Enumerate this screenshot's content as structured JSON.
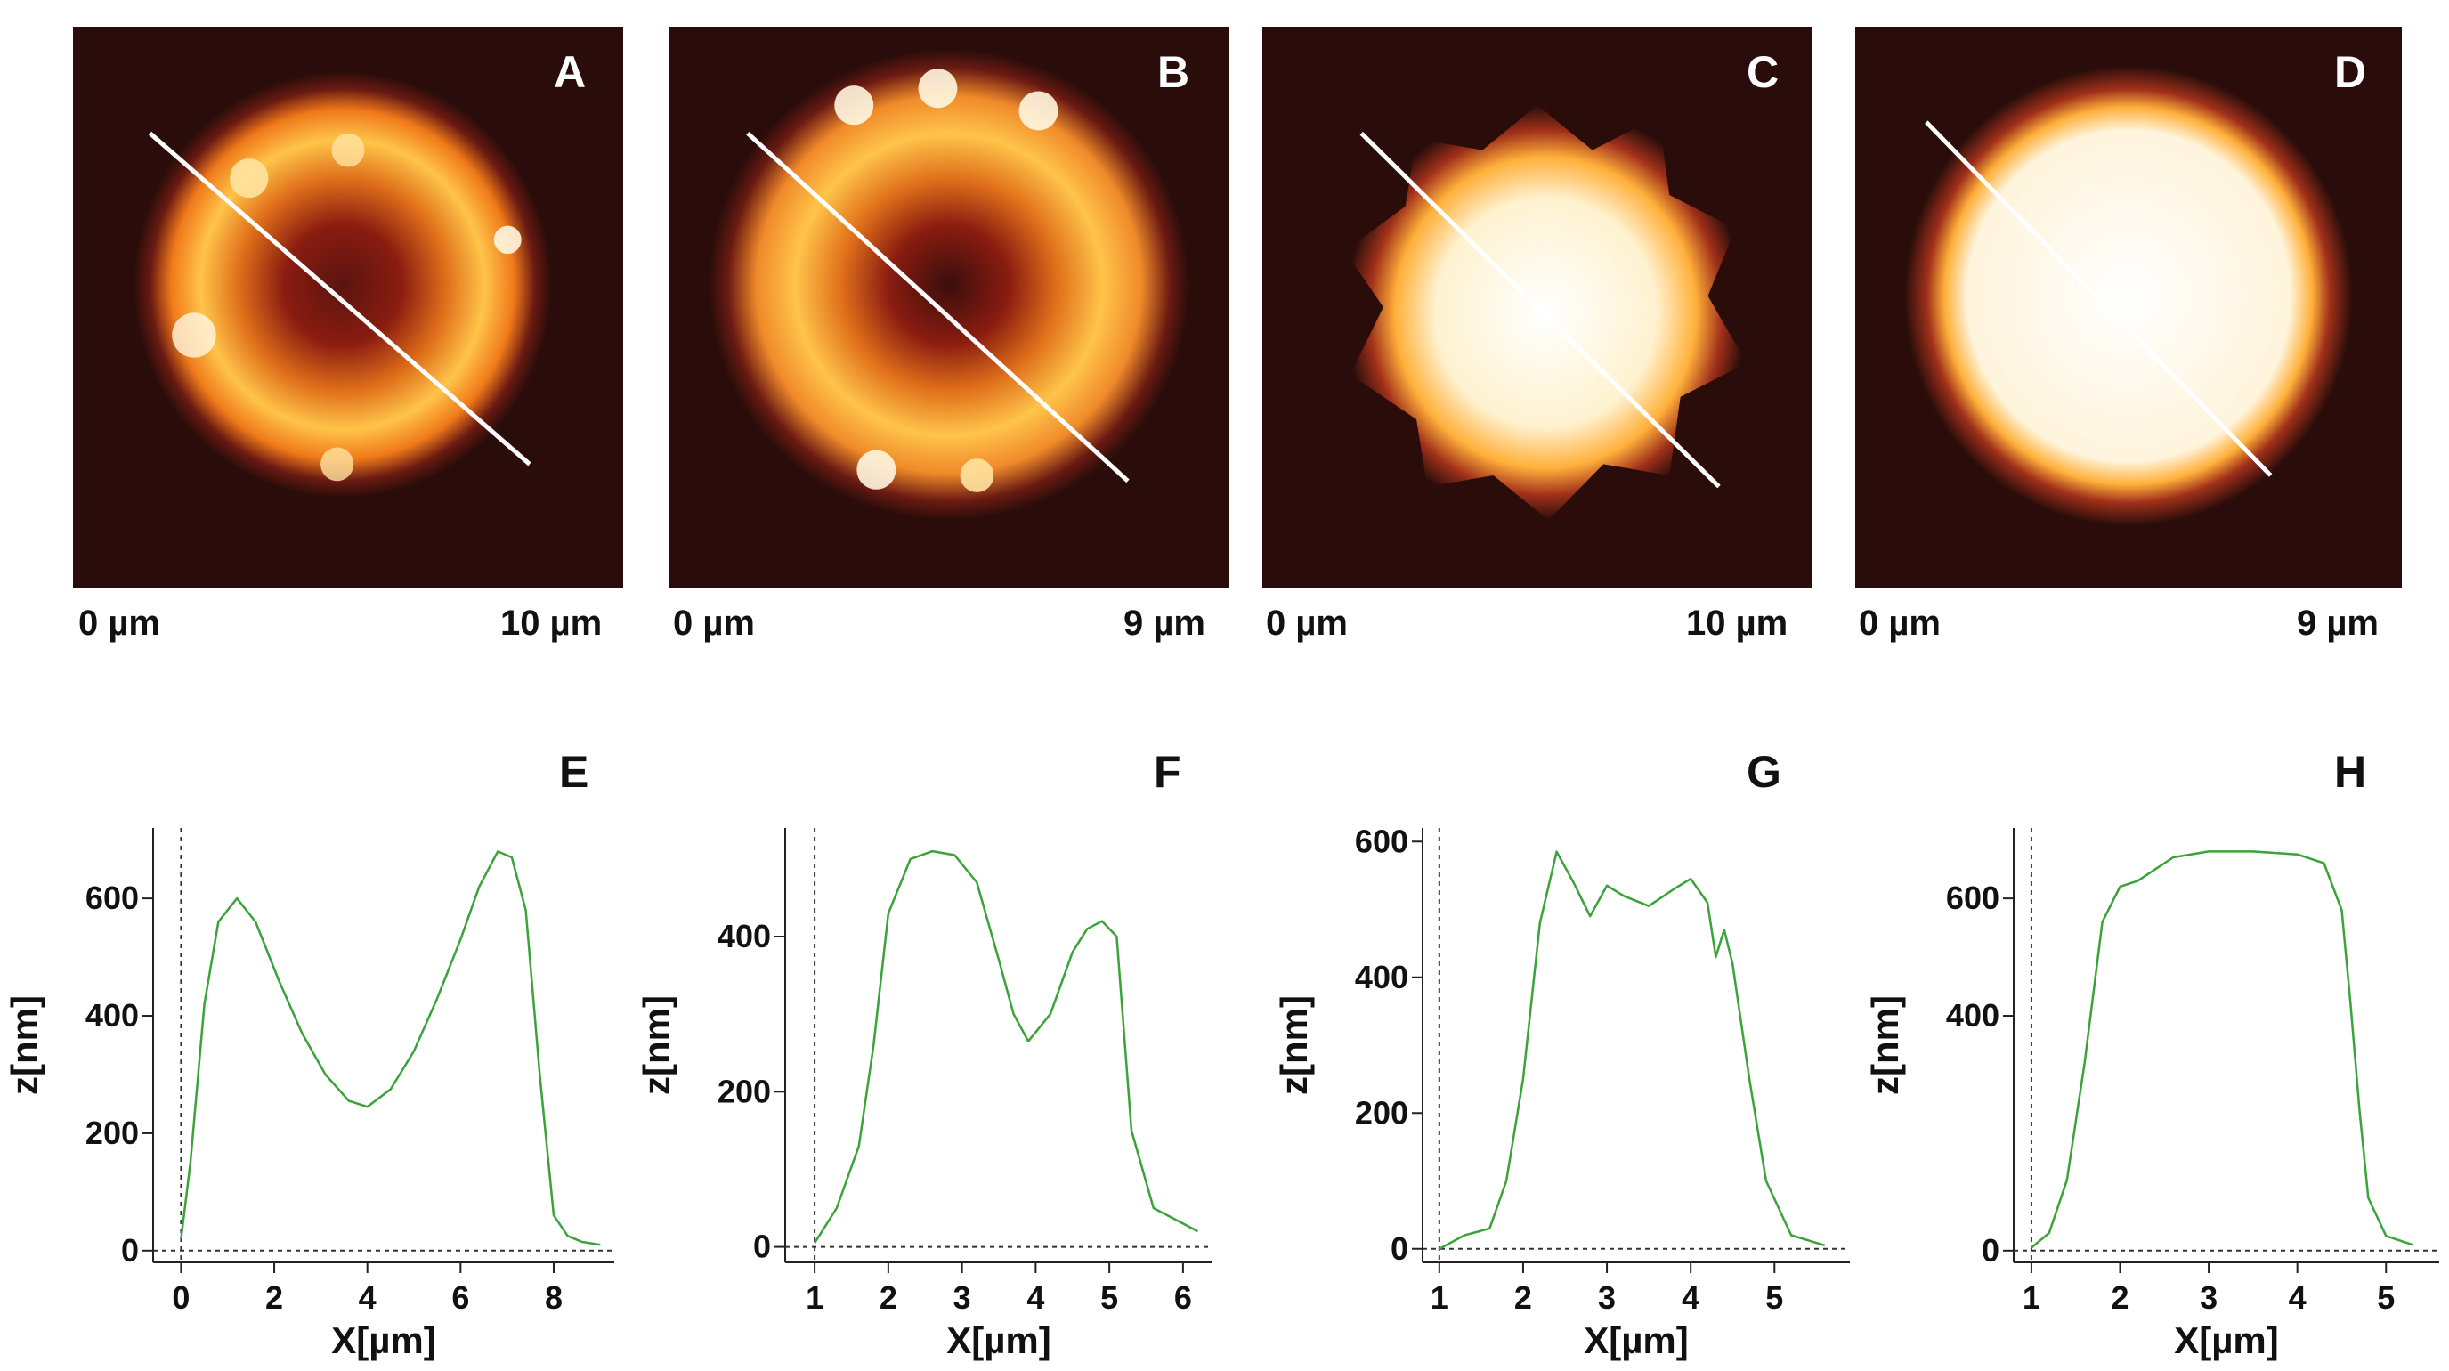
{
  "images": [
    {
      "letter": "A",
      "scale_start": "0 µm",
      "scale_end": "10 µm",
      "shape": "ring"
    },
    {
      "letter": "B",
      "scale_start": "0 µm",
      "scale_end": "9 µm",
      "shape": "ring-wide"
    },
    {
      "letter": "C",
      "scale_start": "0 µm",
      "scale_end": "10 µm",
      "shape": "star"
    },
    {
      "letter": "D",
      "scale_start": "0 µm",
      "scale_end": "9 µm",
      "shape": "disk"
    }
  ],
  "colors": {
    "background": "#2a0d0a",
    "ring_dark": "#8a1c10",
    "ring_mid": "#e0701a",
    "ring_bright": "#ffd36a",
    "peak": "#fff6e0",
    "profile_line": "#3aa33a",
    "line_cut": "#ffffff"
  },
  "chart_data": [
    {
      "type": "line",
      "letter": "E",
      "xlabel": "X[µm]",
      "ylabel": "z[nm]",
      "xlim": [
        -0.6,
        9.3
      ],
      "ylim": [
        -20,
        720
      ],
      "xticks": [
        0,
        2,
        4,
        6,
        8
      ],
      "yticks": [
        0,
        200,
        400,
        600
      ],
      "x": [
        0,
        0.2,
        0.5,
        0.8,
        1.2,
        1.6,
        2.1,
        2.6,
        3.1,
        3.6,
        4.0,
        4.5,
        5.0,
        5.5,
        6.0,
        6.4,
        6.8,
        7.1,
        7.4,
        7.7,
        8.0,
        8.3,
        8.6,
        9.0
      ],
      "y": [
        20,
        150,
        420,
        560,
        600,
        560,
        460,
        370,
        300,
        255,
        245,
        275,
        340,
        430,
        530,
        620,
        680,
        670,
        580,
        300,
        60,
        25,
        15,
        10
      ]
    },
    {
      "type": "line",
      "letter": "F",
      "xlabel": "X[µm]",
      "ylabel": "z[nm]",
      "xlim": [
        0.6,
        6.4
      ],
      "ylim": [
        -20,
        540
      ],
      "xticks": [
        1,
        2,
        3,
        4,
        5,
        6
      ],
      "yticks": [
        0,
        200,
        400
      ],
      "x": [
        1.0,
        1.3,
        1.6,
        1.8,
        2.0,
        2.3,
        2.6,
        2.9,
        3.2,
        3.5,
        3.7,
        3.9,
        4.2,
        4.5,
        4.7,
        4.9,
        5.1,
        5.3,
        5.6,
        6.0,
        6.2
      ],
      "y": [
        5,
        50,
        130,
        260,
        430,
        500,
        510,
        505,
        470,
        370,
        300,
        265,
        300,
        380,
        410,
        420,
        400,
        150,
        50,
        30,
        20
      ]
    },
    {
      "type": "line",
      "letter": "G",
      "xlabel": "X[µm]",
      "ylabel": "z[nm]",
      "xlim": [
        0.8,
        5.9
      ],
      "ylim": [
        -20,
        620
      ],
      "xticks": [
        1,
        2,
        3,
        4,
        5
      ],
      "yticks": [
        0,
        200,
        400,
        600
      ],
      "x": [
        1.0,
        1.3,
        1.6,
        1.8,
        2.0,
        2.2,
        2.4,
        2.6,
        2.8,
        3.0,
        3.2,
        3.5,
        3.8,
        4.0,
        4.2,
        4.3,
        4.4,
        4.5,
        4.7,
        4.9,
        5.2,
        5.6
      ],
      "y": [
        0,
        20,
        30,
        100,
        250,
        480,
        585,
        540,
        490,
        535,
        520,
        505,
        530,
        545,
        510,
        430,
        470,
        420,
        250,
        100,
        20,
        5
      ]
    },
    {
      "type": "line",
      "letter": "H",
      "xlabel": "X[µm]",
      "ylabel": "z[nm]",
      "xlim": [
        0.8,
        5.6
      ],
      "ylim": [
        -20,
        720
      ],
      "xticks": [
        1,
        2,
        3,
        4,
        5
      ],
      "yticks": [
        0,
        400,
        600
      ],
      "x": [
        1.0,
        1.2,
        1.4,
        1.6,
        1.8,
        2.0,
        2.2,
        2.4,
        2.6,
        3.0,
        3.5,
        4.0,
        4.3,
        4.5,
        4.6,
        4.7,
        4.8,
        5.0,
        5.3
      ],
      "y": [
        5,
        30,
        120,
        320,
        560,
        620,
        630,
        650,
        670,
        680,
        680,
        675,
        660,
        580,
        420,
        240,
        90,
        25,
        10
      ]
    }
  ]
}
